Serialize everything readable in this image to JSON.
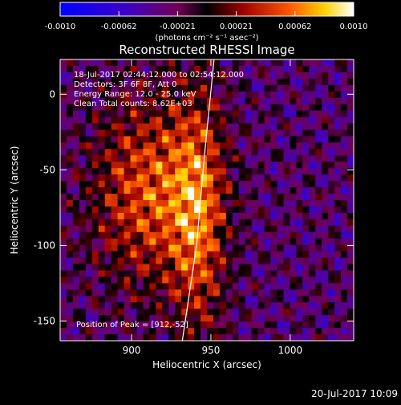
{
  "colorbar": {
    "min": -0.001,
    "max": 0.001,
    "ticks": [
      "-0.0010",
      "-0.00062",
      "-0.00021",
      "0.00021",
      "0.00062",
      "0.0010"
    ],
    "unit_label": "(photons cm⁻² s⁻¹ asec⁻²)"
  },
  "chart_data": {
    "type": "heatmap",
    "title": "Reconstructed RHESSI Image",
    "xlabel": "Heliocentric X (arcsec)",
    "ylabel": "Heliocentric Y (arcsec)",
    "xlim": [
      855,
      1040
    ],
    "ylim": [
      -163,
      23
    ],
    "x_ticks": [
      {
        "value": 900,
        "label": "900"
      },
      {
        "value": 950,
        "label": "950"
      },
      {
        "value": 1000,
        "label": "1000"
      }
    ],
    "y_ticks": [
      {
        "value": 0,
        "label": "0"
      },
      {
        "value": -50,
        "label": "-50"
      },
      {
        "value": -100,
        "label": "-100"
      },
      {
        "value": -150,
        "label": "-150"
      }
    ],
    "annotations": [
      "18-Jul-2017 02:44:12.000 to 02:54:12.000",
      "Detectors: 3F 6F 8F, Att 0",
      "Energy Range: 12.0 - 25.0 keV",
      "Clean     Total counts: 8.62E+03"
    ],
    "peak_label": "Position of Peak = [912,-52]",
    "peak": [
      912,
      -52
    ],
    "limb": [
      [
        952,
        23
      ],
      [
        946,
        -40
      ],
      [
        941,
        -100
      ],
      [
        932,
        -163
      ]
    ]
  },
  "footer": {
    "timestamp": "20-Jul-2017 10:09"
  }
}
